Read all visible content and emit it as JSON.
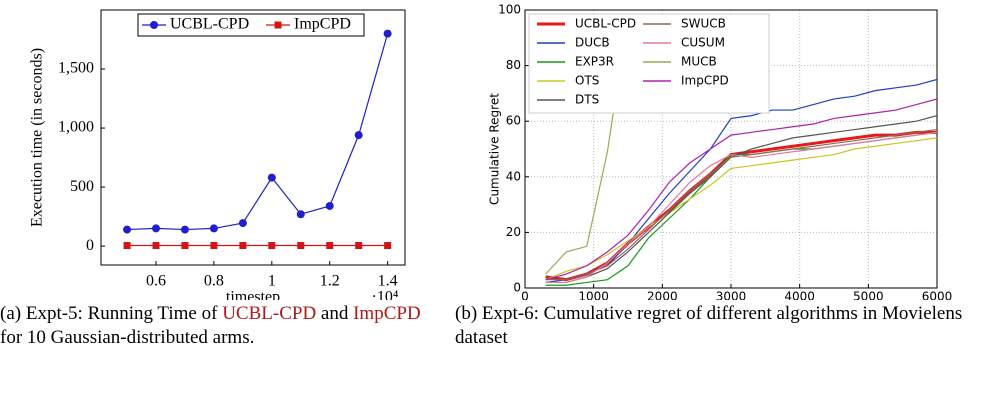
{
  "chart_data": [
    {
      "type": "line",
      "xlabel": "timestep",
      "ylabel": "Execution time (in seconds)",
      "x_multiplier": "·10⁴",
      "x": [
        0.5,
        0.6,
        0.7,
        0.8,
        0.9,
        1.0,
        1.1,
        1.2,
        1.3,
        1.4
      ],
      "series": [
        {
          "name": "UCBL-CPD",
          "color": "#1f1fd0",
          "marker": "circle",
          "values": [
            140,
            150,
            140,
            150,
            195,
            580,
            270,
            340,
            940,
            1800
          ]
        },
        {
          "name": "ImpCPD",
          "color": "#d41414",
          "marker": "square",
          "values": [
            5,
            5,
            5,
            5,
            5,
            5,
            5,
            5,
            5,
            5
          ]
        }
      ],
      "xlim": [
        0.41,
        1.46
      ],
      "xticks": [
        0.6,
        0.8,
        1,
        1.2,
        1.4
      ],
      "ylim": [
        -160,
        2000
      ],
      "yticks": [
        0,
        500,
        {
          "value": 1000,
          "label": "1,000"
        },
        {
          "value": 1500,
          "label": "1,500"
        }
      ],
      "grid": false,
      "legend": "top"
    },
    {
      "type": "line",
      "xlabel": "Timestep",
      "ylabel": "Cumulative Regret",
      "x": [
        300,
        600,
        900,
        1200,
        1500,
        1800,
        2100,
        2400,
        2700,
        3000,
        3300,
        3600,
        3900,
        4200,
        4500,
        4800,
        5100,
        5400,
        5700,
        6000
      ],
      "series": [
        {
          "name": "UCBL-CPD",
          "color": "#e41a1c",
          "width": 3,
          "values": [
            4,
            3,
            5,
            9,
            16,
            22,
            28,
            35,
            41,
            48,
            49,
            50,
            51,
            52,
            53,
            54,
            55,
            55,
            56,
            56
          ]
        },
        {
          "name": "DUCB",
          "color": "#1f3fbf",
          "values": [
            2,
            3,
            5,
            8,
            16,
            25,
            34,
            42,
            50,
            61,
            62,
            64,
            64,
            66,
            68,
            69,
            71,
            72,
            73,
            75
          ]
        },
        {
          "name": "EXP3R",
          "color": "#1a9a1a",
          "values": [
            1,
            1,
            2,
            3,
            8,
            18,
            25,
            32,
            40,
            48,
            48,
            49,
            50,
            50,
            51,
            52,
            53,
            54,
            55,
            56
          ]
        },
        {
          "name": "OTS",
          "color": "#c8c820",
          "values": [
            3,
            6,
            8,
            12,
            17,
            22,
            27,
            32,
            37,
            43,
            44,
            45,
            46,
            47,
            48,
            50,
            51,
            52,
            53,
            54
          ]
        },
        {
          "name": "DTS",
          "color": "#555555",
          "values": [
            2,
            2,
            4,
            7,
            13,
            20,
            27,
            34,
            40,
            47,
            50,
            52,
            54,
            55,
            56,
            57,
            58,
            59,
            60,
            62
          ]
        },
        {
          "name": "SWUCB",
          "color": "#8b6b5b",
          "values": [
            3,
            3,
            5,
            8,
            14,
            21,
            28,
            35,
            41,
            47,
            48,
            49,
            50,
            51,
            52,
            53,
            54,
            55,
            56,
            57
          ]
        },
        {
          "name": "CUSUM",
          "color": "#e07aa0",
          "values": [
            2,
            2,
            4,
            9,
            16,
            22,
            30,
            38,
            44,
            48,
            47,
            48,
            49,
            50,
            51,
            52,
            53,
            54,
            55,
            56
          ]
        },
        {
          "name": "MUCB",
          "color": "#9aaa50",
          "values": [
            5,
            13,
            15,
            49,
            98,
            null,
            null,
            null,
            null,
            null,
            null,
            null,
            null,
            null,
            null,
            null,
            null,
            null,
            null,
            null
          ]
        },
        {
          "name": "ImpCPD",
          "color": "#b020b0",
          "values": [
            3,
            5,
            8,
            13,
            19,
            28,
            38,
            45,
            50,
            55,
            56,
            57,
            58,
            59,
            61,
            62,
            63,
            64,
            66,
            68
          ]
        }
      ],
      "xlim": [
        0,
        6000
      ],
      "xticks": [
        0,
        1000,
        2000,
        3000,
        4000,
        5000,
        6000
      ],
      "ylim": [
        0,
        100
      ],
      "yticks": [
        0,
        20,
        40,
        60,
        80,
        100
      ],
      "grid": true,
      "legend": "top-left"
    }
  ],
  "captions": [
    {
      "parts": [
        "(a) Expt-5: Running Time of ",
        "UCBL-CPD",
        " and ",
        "ImpCPD",
        " for 10 Gaussian-distributed arms."
      ]
    },
    {
      "parts": [
        "(b) Expt-6: Cumulative regret of different algorithms in Movielens dataset"
      ]
    }
  ]
}
